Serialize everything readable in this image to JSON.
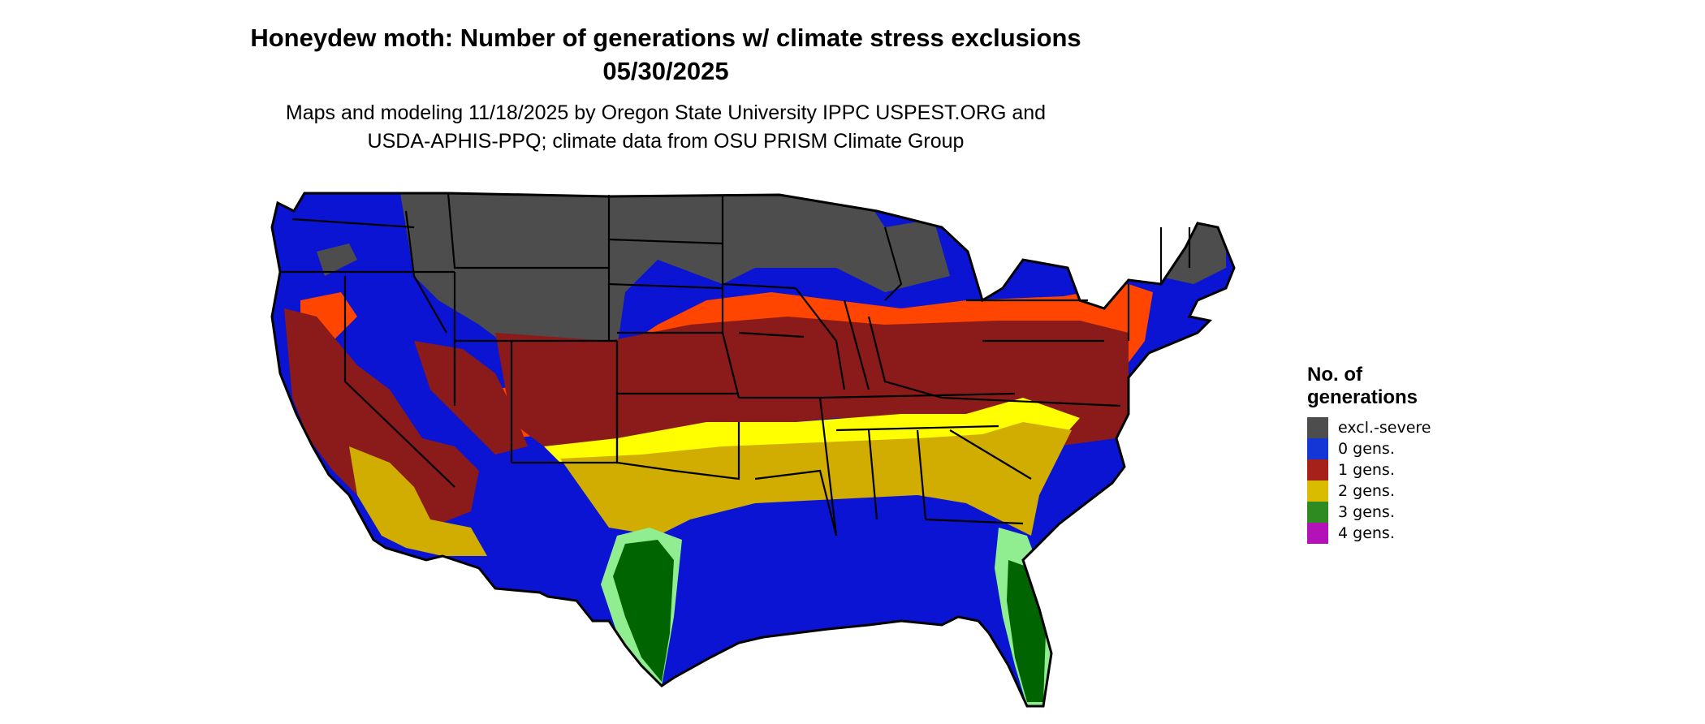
{
  "header": {
    "title_line1": "Honeydew moth: Number of generations w/ climate stress exclusions",
    "title_line2": "05/30/2025",
    "subtitle_line1": "Maps and modeling 11/18/2025 by Oregon State University IPPC USPEST.ORG and",
    "subtitle_line2": "USDA-APHIS-PPQ; climate data from OSU PRISM Climate Group"
  },
  "legend": {
    "title": "No. of\ngenerations",
    "items": [
      {
        "label": "excl.-severe",
        "color": "#4d4d4d"
      },
      {
        "label": "0 gens.",
        "color": "#1436d6"
      },
      {
        "label": "1 gens.",
        "color": "#a5211a"
      },
      {
        "label": "2 gens.",
        "color": "#d9bb00"
      },
      {
        "label": "3 gens.",
        "color": "#2e8b22"
      },
      {
        "label": "4 gens.",
        "color": "#b312b8"
      }
    ]
  },
  "map_colors": {
    "excluded": "#4d4d4d",
    "zero": "#0a14d2",
    "one": "#8b1a1a",
    "one_transition": "#ff4500",
    "two": "#d0ad00",
    "two_transition": "#ffff00",
    "three": "#006400",
    "three_transition": "#90ee90",
    "four": "#ff00ff",
    "border": "#000000"
  }
}
